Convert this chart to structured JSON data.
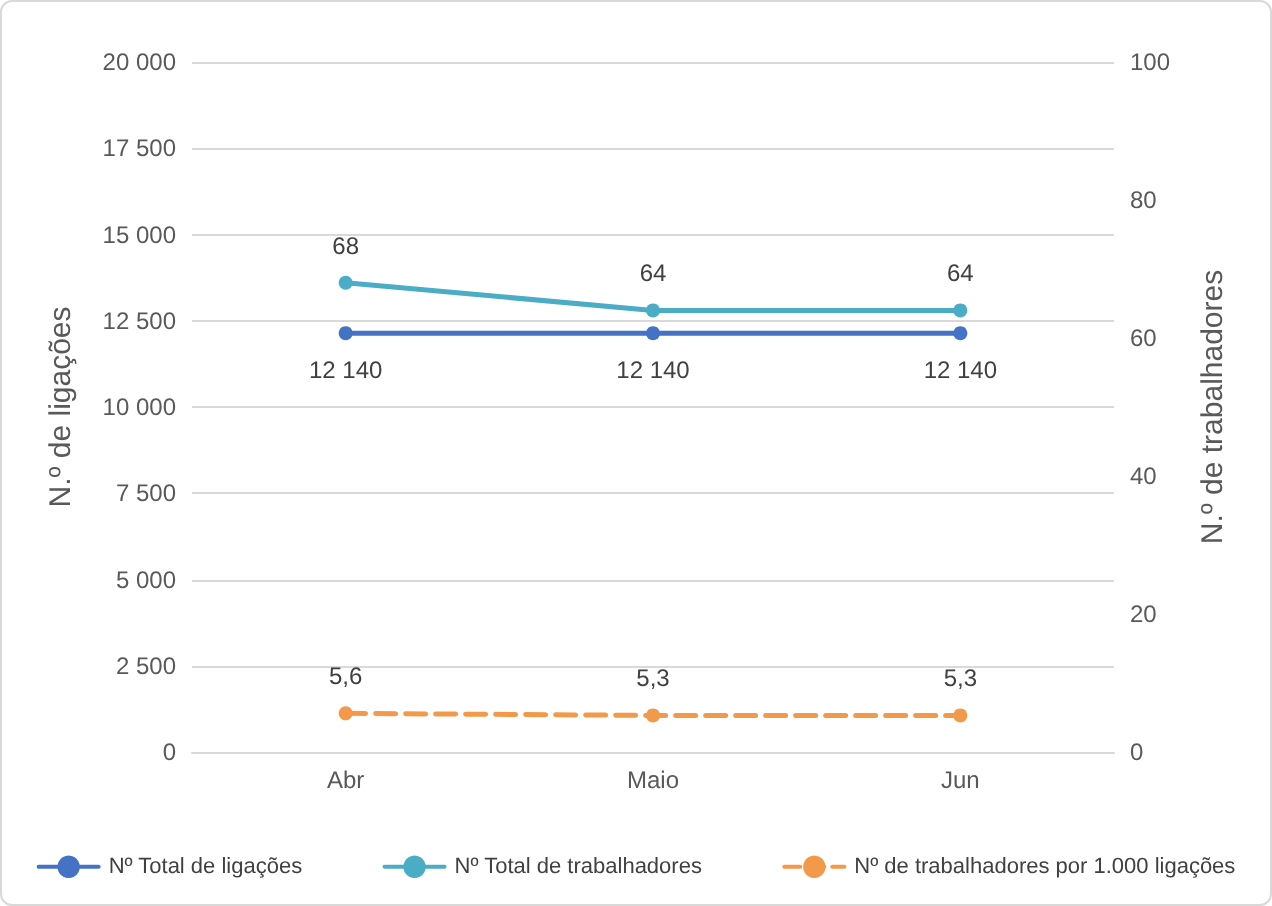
{
  "chart_data": {
    "type": "line",
    "categories": [
      "Abr",
      "Maio",
      "Jun"
    ],
    "ylabel": "N.º de ligações",
    "y2label": "N.º de trabalhadores",
    "ylim": [
      0,
      20000
    ],
    "yticks": [
      0,
      {
        "value": 2500,
        "label": "2 500"
      },
      {
        "value": 5000,
        "label": "5 000"
      },
      {
        "value": 7500,
        "label": "7 500"
      },
      {
        "value": 10000,
        "label": "10 000"
      },
      {
        "value": 12500,
        "label": "12 500"
      },
      {
        "value": 15000,
        "label": "15 000"
      },
      {
        "value": 17500,
        "label": "17 500"
      },
      {
        "value": 20000,
        "label": "20 000"
      }
    ],
    "y2lim": [
      0,
      100
    ],
    "y2ticks": [
      0,
      20,
      40,
      60,
      80,
      100
    ],
    "series": [
      {
        "name": "Nº Total de ligações",
        "color": "#4472c4",
        "values": [
          12140,
          12140,
          12140
        ],
        "value_labels": [
          "12 140",
          "12 140",
          "12 140"
        ]
      },
      {
        "name": "Nº Total de trabalhadores",
        "color": "#4bacc6",
        "axis": "y2",
        "values": [
          68,
          64,
          64
        ],
        "value_labels": [
          "68",
          "64",
          "64"
        ]
      },
      {
        "name": "Nº de trabalhadores por 1.000 ligações",
        "color": "#f29a4a",
        "axis": "y2",
        "line_style": "dashed",
        "values": [
          5.6,
          5.3,
          5.3
        ],
        "value_labels": [
          "5,6",
          "5,3",
          "5,3"
        ]
      }
    ],
    "grid": "y",
    "legend": "bottom",
    "marker": "circle"
  }
}
